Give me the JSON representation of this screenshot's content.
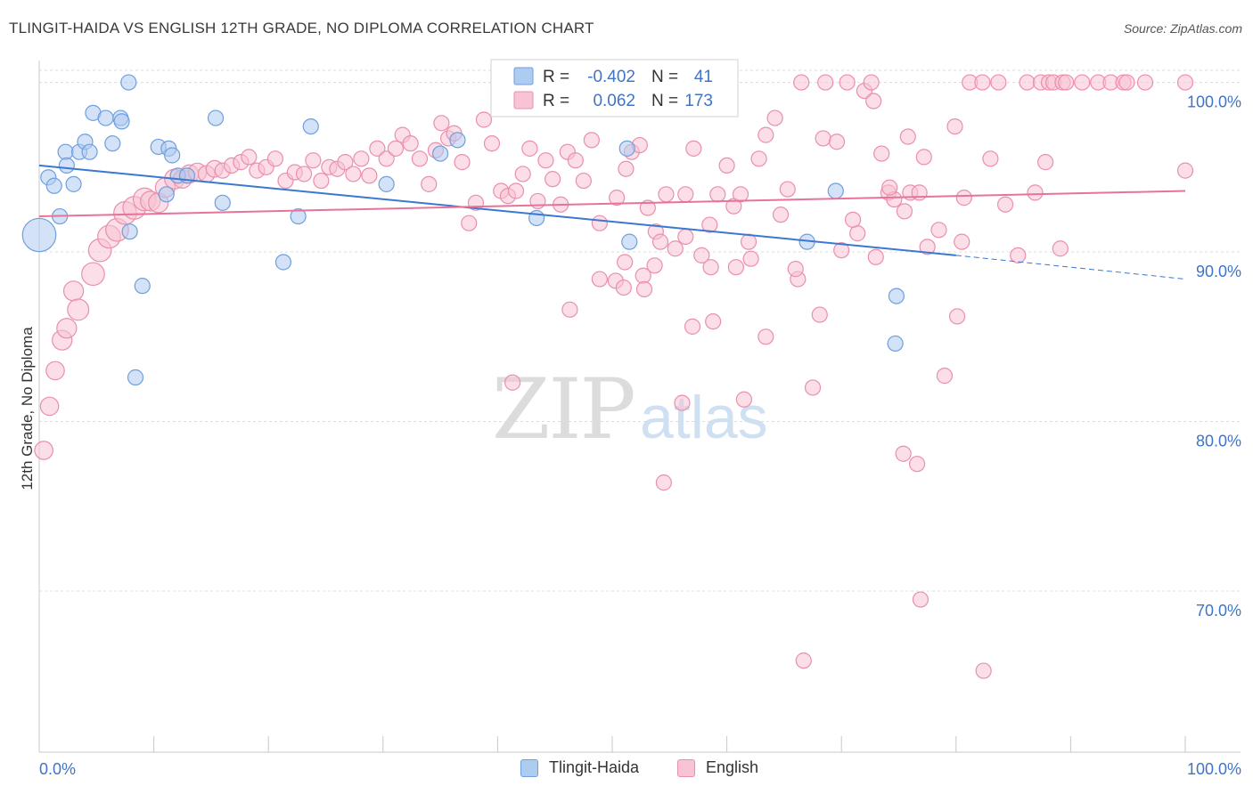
{
  "title": "TLINGIT-HAIDA VS ENGLISH 12TH GRADE, NO DIPLOMA CORRELATION CHART",
  "source": "Source: ZipAtlas.com",
  "watermark": {
    "zip": "ZIP",
    "atlas": "atlas"
  },
  "colors": {
    "blue_fill": "#aecbf0",
    "blue_stroke": "#6f9fdc",
    "blue_line": "#3a78d2",
    "pink_fill": "#f8c3d3",
    "pink_stroke": "#ea8fac",
    "pink_line": "#e7729a",
    "axis_text": "#3f74c8",
    "grid": "#dcdcdc"
  },
  "legend_stats": [
    {
      "series": "Tlingit-Haida",
      "r_label": "R =",
      "r_value": "-0.402",
      "n_label": "N =",
      "n_value": "41"
    },
    {
      "series": "English",
      "r_label": "R =",
      "r_value": "0.062",
      "n_label": "N =",
      "n_value": "173"
    }
  ],
  "chart_data": {
    "type": "scatter",
    "title": "TLINGIT-HAIDA VS ENGLISH 12TH GRADE, NO DIPLOMA CORRELATION CHART",
    "xlabel": "",
    "ylabel": "12th Grade, No Diploma",
    "xlim": [
      0,
      100
    ],
    "ylim": [
      60.5,
      101.5
    ],
    "x_tick_labels": [
      "0.0%",
      "100.0%"
    ],
    "y_ticks": [
      70,
      80,
      90,
      100
    ],
    "y_tick_labels": [
      "70.0%",
      "80.0%",
      "90.0%",
      "100.0%"
    ],
    "grid": true,
    "legend_position": "top-center and bottom",
    "series": [
      {
        "name": "Tlingit-Haida",
        "color": "#aecbf0",
        "trend": {
          "x": [
            0,
            80
          ],
          "y": [
            95.1,
            89.8
          ],
          "dashed_to_x": 100,
          "dashed_y": 88.4
        },
        "points": [
          [
            0,
            91,
            2.2
          ],
          [
            0.8,
            94.4,
            1
          ],
          [
            1.3,
            93.9,
            1
          ],
          [
            1.8,
            92.1,
            1
          ],
          [
            2.3,
            95.9,
            1
          ],
          [
            2.4,
            95.1,
            1
          ],
          [
            3.5,
            95.9,
            1
          ],
          [
            4,
            96.5,
            1
          ],
          [
            4.4,
            95.9,
            1
          ],
          [
            4.7,
            98.2,
            1
          ],
          [
            5.8,
            97.9,
            1
          ],
          [
            6.4,
            96.4,
            1
          ],
          [
            7.1,
            97.9,
            1
          ],
          [
            7.2,
            97.7,
            1
          ],
          [
            7.8,
            100,
            1
          ],
          [
            3,
            94,
            1
          ],
          [
            7.9,
            91.2,
            1
          ],
          [
            9,
            88,
            1
          ],
          [
            8.4,
            82.6,
            1
          ],
          [
            10.4,
            96.2,
            1
          ],
          [
            11.1,
            93.4,
            1
          ],
          [
            11.3,
            96.1,
            1
          ],
          [
            11.6,
            95.7,
            1
          ],
          [
            12.1,
            94.5,
            1
          ],
          [
            12.9,
            94.5,
            1
          ],
          [
            15.4,
            97.9,
            1
          ],
          [
            16,
            92.9,
            1
          ],
          [
            21.3,
            89.4,
            1
          ],
          [
            22.6,
            92.1,
            1
          ],
          [
            23.7,
            97.4,
            1
          ],
          [
            30.3,
            94,
            1
          ],
          [
            35,
            95.8,
            1
          ],
          [
            36.5,
            96.6,
            1
          ],
          [
            43.4,
            92,
            1
          ],
          [
            51.3,
            96.1,
            1
          ],
          [
            51.5,
            90.6,
            1
          ],
          [
            67,
            90.6,
            1
          ],
          [
            69.5,
            93.6,
            1
          ],
          [
            74.8,
            87.4,
            1
          ],
          [
            74.7,
            84.6,
            1
          ],
          [
            50,
            97.5,
            0
          ]
        ]
      },
      {
        "name": "English",
        "color": "#f8c3d3",
        "trend": {
          "x": [
            0,
            100
          ],
          "y": [
            92.1,
            93.6
          ]
        },
        "points": [
          [
            0.4,
            78.3,
            1.2
          ],
          [
            0.9,
            80.9,
            1.2
          ],
          [
            1.4,
            83,
            1.2
          ],
          [
            2,
            84.8,
            1.3
          ],
          [
            2.4,
            85.5,
            1.3
          ],
          [
            3,
            87.7,
            1.3
          ],
          [
            3.4,
            86.6,
            1.4
          ],
          [
            4.7,
            88.7,
            1.5
          ],
          [
            5.3,
            90.1,
            1.5
          ],
          [
            6.1,
            90.9,
            1.5
          ],
          [
            6.8,
            91.3,
            1.5
          ],
          [
            7.5,
            92.3,
            1.5
          ],
          [
            8.3,
            92.6,
            1.5
          ],
          [
            9.2,
            93.1,
            1.5
          ],
          [
            9.7,
            93,
            1.3
          ],
          [
            10.4,
            92.9,
            1.3
          ],
          [
            11,
            93.8,
            1.3
          ],
          [
            11.8,
            94.3,
            1.3
          ],
          [
            12.5,
            94.3,
            1.2
          ],
          [
            13.1,
            94.6,
            1.2
          ],
          [
            13.8,
            94.7,
            1.2
          ],
          [
            14.6,
            94.6,
            1.1
          ],
          [
            15.3,
            94.9,
            1.1
          ],
          [
            16,
            94.8,
            1
          ],
          [
            16.8,
            95.1,
            1
          ],
          [
            17.6,
            95.3,
            1
          ],
          [
            18.3,
            95.6,
            1
          ],
          [
            19,
            94.8,
            1
          ],
          [
            19.8,
            95,
            1
          ],
          [
            20.6,
            95.5,
            1
          ],
          [
            21.5,
            94.2,
            1
          ],
          [
            22.3,
            94.7,
            1
          ],
          [
            23.1,
            94.6,
            1
          ],
          [
            23.9,
            95.4,
            1
          ],
          [
            24.6,
            94.2,
            1
          ],
          [
            25.3,
            95,
            1
          ],
          [
            26,
            94.9,
            1
          ],
          [
            26.7,
            95.3,
            1
          ],
          [
            27.4,
            94.6,
            1
          ],
          [
            28.1,
            95.5,
            1
          ],
          [
            28.8,
            94.5,
            1
          ],
          [
            29.5,
            96.1,
            1
          ],
          [
            30.3,
            95.5,
            1
          ],
          [
            31.1,
            96.1,
            1
          ],
          [
            31.7,
            96.9,
            1
          ],
          [
            32.4,
            96.4,
            1
          ],
          [
            33.2,
            95.5,
            1
          ],
          [
            34,
            94,
            1
          ],
          [
            34.6,
            96,
            1
          ],
          [
            35.1,
            97.6,
            1
          ],
          [
            35.7,
            96.7,
            1
          ],
          [
            36.2,
            97,
            1
          ],
          [
            36.9,
            95.3,
            1
          ],
          [
            37.5,
            91.7,
            1
          ],
          [
            38.1,
            92.9,
            1
          ],
          [
            38.8,
            97.8,
            1
          ],
          [
            39.5,
            96.4,
            1
          ],
          [
            40.3,
            93.6,
            1
          ],
          [
            40.9,
            93.3,
            1
          ],
          [
            41.6,
            93.6,
            1
          ],
          [
            42.2,
            94.6,
            1
          ],
          [
            42.8,
            96.1,
            1
          ],
          [
            43.5,
            93,
            1
          ],
          [
            44.2,
            95.4,
            1
          ],
          [
            44.8,
            94.3,
            1
          ],
          [
            45.5,
            92.8,
            1
          ],
          [
            46.1,
            95.9,
            1
          ],
          [
            46.8,
            95.4,
            1
          ],
          [
            47.5,
            94.2,
            1
          ],
          [
            48.2,
            96.6,
            1
          ],
          [
            48.9,
            91.7,
            1
          ],
          [
            50.4,
            93.2,
            1
          ],
          [
            51.2,
            94.9,
            1
          ],
          [
            51.7,
            95.9,
            1
          ],
          [
            52.4,
            96.3,
            1
          ],
          [
            53.1,
            92.6,
            1
          ],
          [
            53.8,
            91.2,
            1
          ],
          [
            54.2,
            90.6,
            1
          ],
          [
            54.7,
            93.4,
            1
          ],
          [
            55.5,
            90.2,
            1
          ],
          [
            56.4,
            93.4,
            1
          ],
          [
            57.1,
            96.1,
            1
          ],
          [
            57.8,
            89.8,
            1
          ],
          [
            58.5,
            91.6,
            1
          ],
          [
            59.2,
            93.4,
            1
          ],
          [
            60,
            95.1,
            1
          ],
          [
            60.6,
            92.7,
            1
          ],
          [
            61.2,
            93.4,
            1
          ],
          [
            61.9,
            90.6,
            1
          ],
          [
            62.8,
            95.5,
            1
          ],
          [
            63.4,
            96.9,
            1
          ],
          [
            64.2,
            97.9,
            1
          ],
          [
            65.3,
            93.7,
            1
          ],
          [
            66.5,
            100,
            1
          ],
          [
            68.4,
            96.7,
            1
          ],
          [
            68.6,
            100,
            1
          ],
          [
            69.6,
            96.5,
            1
          ],
          [
            70.5,
            100,
            1
          ],
          [
            71.4,
            91.1,
            1
          ],
          [
            72,
            99.5,
            1
          ],
          [
            72.6,
            100,
            1
          ],
          [
            72.8,
            98.9,
            1
          ],
          [
            73.5,
            95.8,
            1
          ],
          [
            74.1,
            93.5,
            1
          ],
          [
            74.6,
            93.1,
            1
          ],
          [
            75.5,
            92.4,
            1
          ],
          [
            76,
            93.5,
            1
          ],
          [
            76.8,
            93.5,
            1
          ],
          [
            77.5,
            90.3,
            1
          ],
          [
            79.9,
            97.4,
            1
          ],
          [
            80.5,
            90.6,
            1
          ],
          [
            81.2,
            100,
            1
          ],
          [
            82.3,
            100,
            1
          ],
          [
            83.7,
            100,
            1
          ],
          [
            86.2,
            100,
            1
          ],
          [
            87.4,
            100,
            1
          ],
          [
            88.1,
            100,
            1
          ],
          [
            88.5,
            100,
            1
          ],
          [
            89.3,
            100,
            1
          ],
          [
            89.6,
            100,
            1
          ],
          [
            91,
            100,
            1
          ],
          [
            92.4,
            100,
            1
          ],
          [
            93.5,
            100,
            1
          ],
          [
            94.6,
            100,
            1
          ],
          [
            94.9,
            100,
            1
          ],
          [
            96.5,
            100,
            1
          ],
          [
            100,
            100,
            1
          ],
          [
            100,
            94.8,
            1
          ],
          [
            48.9,
            88.4,
            1
          ],
          [
            50.3,
            88.3,
            1
          ],
          [
            51,
            87.9,
            1
          ],
          [
            52.7,
            88.6,
            1
          ],
          [
            57,
            85.6,
            1
          ],
          [
            58.8,
            85.9,
            1
          ],
          [
            63.4,
            85,
            1
          ],
          [
            66.2,
            88.4,
            1
          ],
          [
            67.5,
            82,
            1
          ],
          [
            68.1,
            86.3,
            1
          ],
          [
            75.4,
            78.1,
            1
          ],
          [
            76.6,
            77.5,
            1
          ],
          [
            76.9,
            69.5,
            1
          ],
          [
            79,
            82.7,
            1
          ],
          [
            82.4,
            65.3,
            1
          ],
          [
            80.1,
            86.2,
            1
          ],
          [
            61.5,
            81.3,
            1
          ],
          [
            56.1,
            81.1,
            1
          ],
          [
            54.5,
            76.4,
            1
          ],
          [
            66.7,
            65.9,
            1
          ],
          [
            41.3,
            82.3,
            1
          ],
          [
            46.3,
            86.6,
            1
          ],
          [
            51.1,
            89.4,
            1
          ],
          [
            52.8,
            87.8,
            1
          ],
          [
            53.7,
            89.2,
            1
          ],
          [
            56.4,
            90.9,
            1
          ],
          [
            58.6,
            89.1,
            1
          ],
          [
            60.8,
            89.1,
            1
          ],
          [
            62.1,
            89.6,
            1
          ],
          [
            64.7,
            92.2,
            1
          ],
          [
            66,
            89,
            1
          ],
          [
            70,
            90.1,
            1
          ],
          [
            71,
            91.9,
            1
          ],
          [
            73,
            89.7,
            1
          ],
          [
            74.2,
            93.8,
            1
          ],
          [
            75.8,
            96.8,
            1
          ],
          [
            77.2,
            95.6,
            1
          ],
          [
            78.5,
            91.3,
            1
          ],
          [
            80.7,
            93.2,
            1
          ],
          [
            83,
            95.5,
            1
          ],
          [
            84.3,
            92.8,
            1
          ],
          [
            85.4,
            89.8,
            1
          ],
          [
            86.9,
            93.5,
            1
          ],
          [
            87.8,
            95.3,
            1
          ],
          [
            89.1,
            90.2,
            1
          ]
        ]
      }
    ]
  },
  "bottom_legend": [
    {
      "label": "Tlingit-Haida"
    },
    {
      "label": "English"
    }
  ]
}
